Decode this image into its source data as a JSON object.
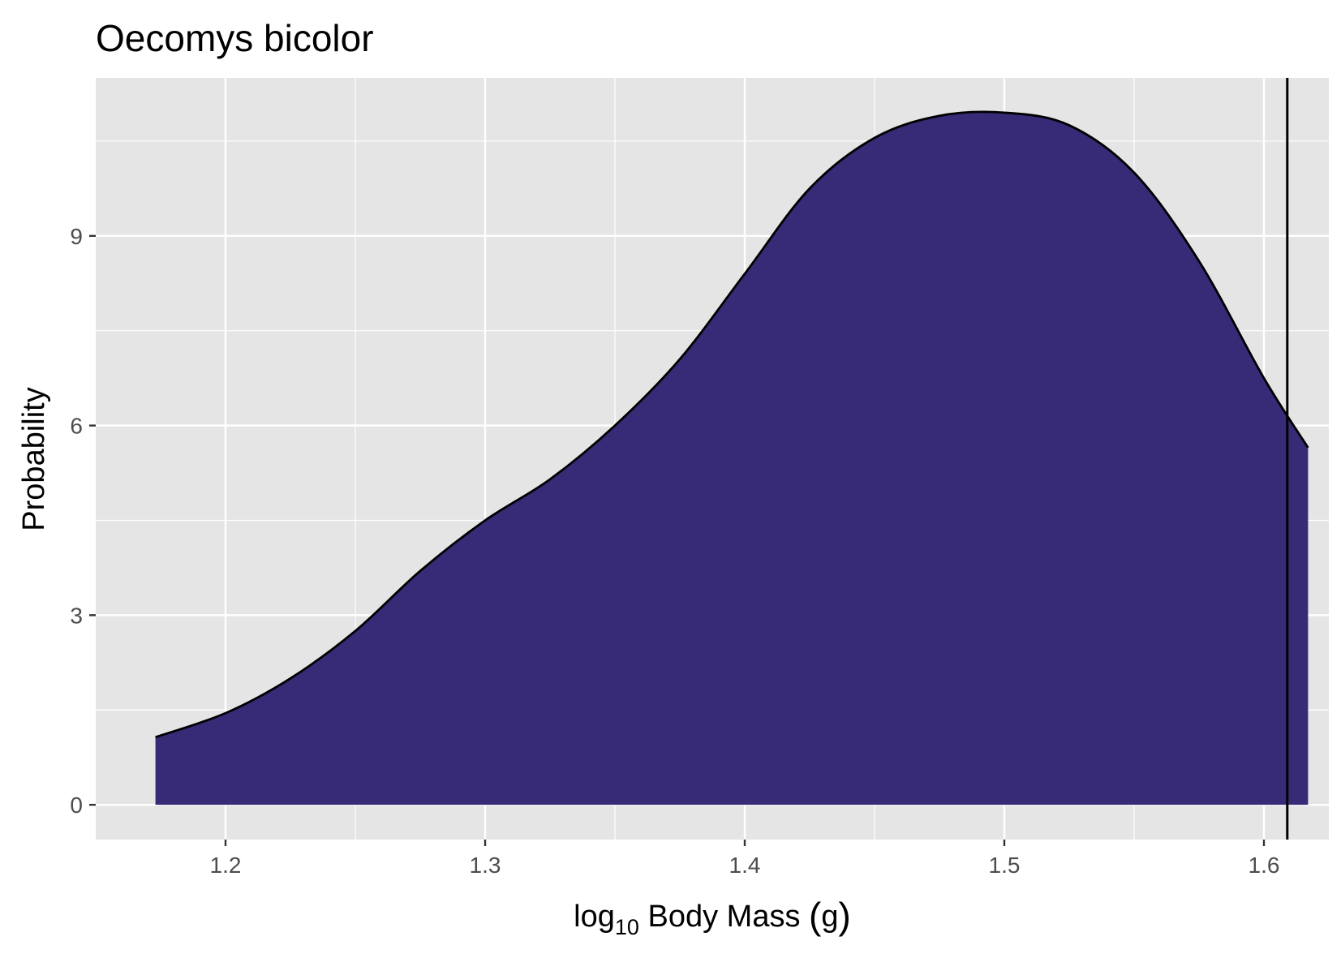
{
  "chart_data": {
    "type": "area",
    "title": "Oecomys bicolor",
    "xlabel": {
      "prefix": "log",
      "subscript": "10",
      "suffix": " Body Mass ",
      "paren_open": "(",
      "paren_inner": "g",
      "paren_close": ")"
    },
    "ylabel": "Probability",
    "xlim": [
      1.15,
      1.625
    ],
    "ylim": [
      -0.55,
      11.5
    ],
    "x_ticks": [
      1.2,
      1.3,
      1.4,
      1.5,
      1.6
    ],
    "x_tick_labels": [
      "1.2",
      "1.3",
      "1.4",
      "1.5",
      "1.6"
    ],
    "y_ticks": [
      0,
      3,
      6,
      9
    ],
    "y_tick_labels": [
      "0",
      "3",
      "6",
      "9"
    ],
    "x_minor_gridlines": [
      1.25,
      1.35,
      1.45,
      1.55
    ],
    "y_minor_gridlines": [
      1.5,
      4.5,
      7.5,
      10.5
    ],
    "grid": true,
    "series": [
      {
        "x": [
          1.173,
          1.2,
          1.225,
          1.25,
          1.275,
          1.3,
          1.325,
          1.35,
          1.375,
          1.4,
          1.425,
          1.45,
          1.475,
          1.5,
          1.525,
          1.55,
          1.575,
          1.6,
          1.617
        ],
        "y": [
          1.07,
          1.45,
          2.0,
          2.75,
          3.7,
          4.5,
          5.15,
          6.0,
          7.05,
          8.4,
          9.75,
          10.55,
          10.9,
          10.95,
          10.75,
          10.0,
          8.6,
          6.75,
          5.65
        ]
      }
    ],
    "vline_x": 1.609,
    "colors": {
      "fill": "#372a77",
      "line": "#000000",
      "panel": "#e5e5e5",
      "grid": "#ffffff",
      "tick_text": "#4d4d4d"
    }
  }
}
